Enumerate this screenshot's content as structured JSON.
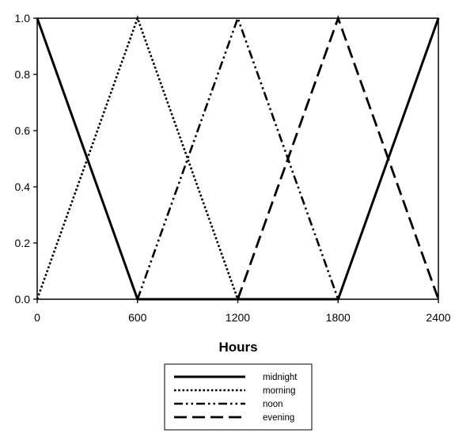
{
  "chart_data": {
    "type": "line",
    "title": "",
    "xlabel": "Hours",
    "ylabel": "",
    "xlim": [
      0,
      2400
    ],
    "ylim": [
      0,
      1
    ],
    "xticks": [
      0,
      600,
      1200,
      1800,
      2400
    ],
    "xtick_labels": [
      "0",
      "600",
      "1200",
      "1800",
      "2400"
    ],
    "yticks": [
      0,
      0.2,
      0.4,
      0.6,
      0.8,
      1.0
    ],
    "ytick_labels": [
      "0.0",
      "0.2",
      "0.4",
      "0.6",
      "0.8",
      "1.0"
    ],
    "grid": false,
    "legend_position": "bottom-center",
    "series": [
      {
        "name": "midnight",
        "style": "solid",
        "color": "#000000",
        "x": [
          0,
          600,
          1800,
          2400
        ],
        "y": [
          1,
          0,
          0,
          1
        ]
      },
      {
        "name": "morning",
        "style": "dotted",
        "color": "#000000",
        "x": [
          0,
          600,
          1200
        ],
        "y": [
          0,
          1,
          0
        ]
      },
      {
        "name": "noon",
        "style": "dash-dot-dot",
        "color": "#000000",
        "x": [
          600,
          1200,
          1800
        ],
        "y": [
          0,
          1,
          0
        ]
      },
      {
        "name": "evening",
        "style": "dashed",
        "color": "#000000",
        "x": [
          1200,
          1800,
          2400
        ],
        "y": [
          0,
          1,
          0
        ]
      }
    ]
  }
}
